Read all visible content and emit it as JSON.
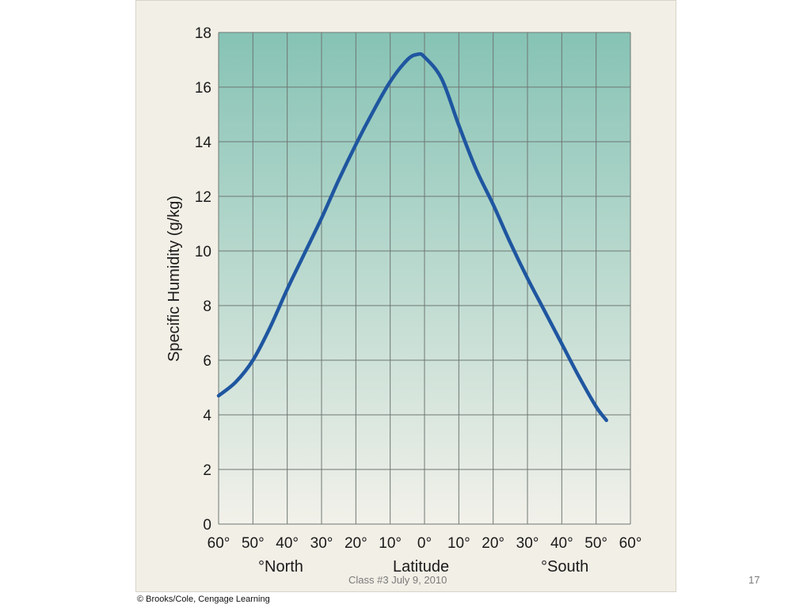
{
  "chart_data": {
    "type": "line",
    "ylabel": "Specific Humidity (g/kg)",
    "xlabel": "Latitude",
    "x_region_labels": {
      "north": "°North",
      "south": "°South"
    },
    "ylim": [
      0,
      18
    ],
    "y_ticks": [
      0,
      2,
      4,
      6,
      8,
      10,
      12,
      14,
      16,
      18
    ],
    "xlim": [
      -60,
      60
    ],
    "x_ticks": [
      -60,
      -50,
      -40,
      -30,
      -20,
      -10,
      0,
      10,
      20,
      30,
      40,
      50,
      60
    ],
    "x_tick_labels": [
      "60°",
      "50°",
      "40°",
      "30°",
      "20°",
      "10°",
      "0°",
      "10°",
      "20°",
      "30°",
      "40°",
      "50°",
      "60°"
    ],
    "grid": true,
    "series": [
      {
        "color": "#1f56a0",
        "x": [
          -60,
          -55,
          -50,
          -45,
          -40,
          -35,
          -30,
          -25,
          -20,
          -15,
          -10,
          -5,
          -2,
          0,
          5,
          10,
          15,
          20,
          25,
          30,
          35,
          40,
          45,
          50,
          53
        ],
        "y": [
          4.7,
          5.2,
          6.0,
          7.2,
          8.6,
          9.9,
          11.2,
          12.6,
          13.9,
          15.1,
          16.2,
          17.0,
          17.2,
          17.1,
          16.3,
          14.6,
          13.0,
          11.7,
          10.3,
          9.0,
          7.8,
          6.6,
          5.4,
          4.3,
          3.8
        ]
      }
    ],
    "background_gradient": [
      "#86c3b5",
      "#f2f1ea"
    ]
  },
  "footer": {
    "text": "Class #3 July 9, 2010",
    "page": "17"
  },
  "copyright": "© Brooks/Cole, Cengage Learning"
}
